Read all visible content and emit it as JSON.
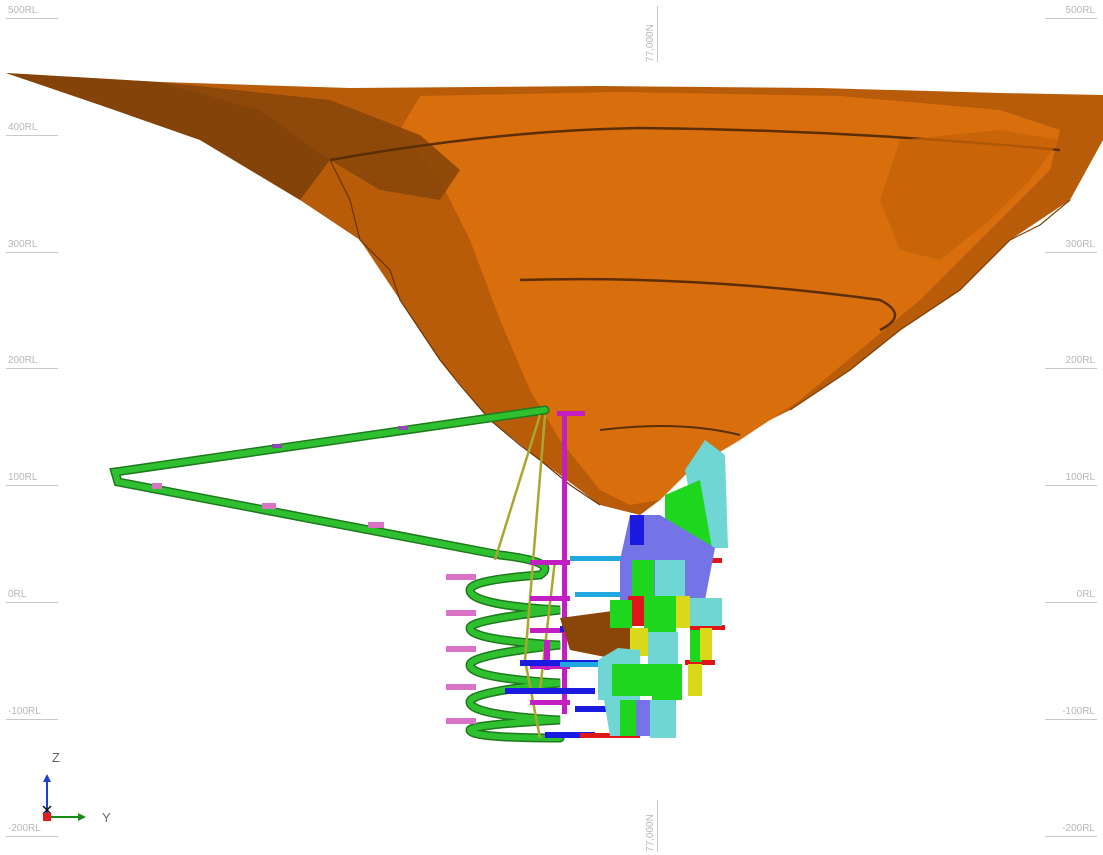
{
  "grid": {
    "rl_labels": [
      "500RL",
      "400RL",
      "300RL",
      "200RL",
      "100RL",
      "0RL",
      "-100RL",
      "-200RL"
    ],
    "northing_label": "77,000N"
  },
  "axis_triad": {
    "vertical_label": "Z",
    "horizontal_label": "Y",
    "colors": {
      "vertical": "#1f3fd8",
      "horizontal": "#1a8c1a",
      "origin": "#e11d1d"
    }
  },
  "colors": {
    "pit_light": "#d96f0c",
    "pit_mid": "#b85c0a",
    "pit_dark": "#7a3e08",
    "decline": "#2fc02f",
    "decline_edge": "#1d7a1d",
    "shaft": "#c21ec2",
    "stope_cyan": "#6fd6d3",
    "stope_green": "#1fd61f",
    "stope_blue": "#7474e6",
    "stope_yellow": "#d9d91a",
    "stope_red": "#e01616",
    "drive_blue": "#1a1ae0",
    "drive_lightblue": "#20a8e0",
    "vent_pink": "#d873c5",
    "raise_olive": "#a8a830"
  }
}
